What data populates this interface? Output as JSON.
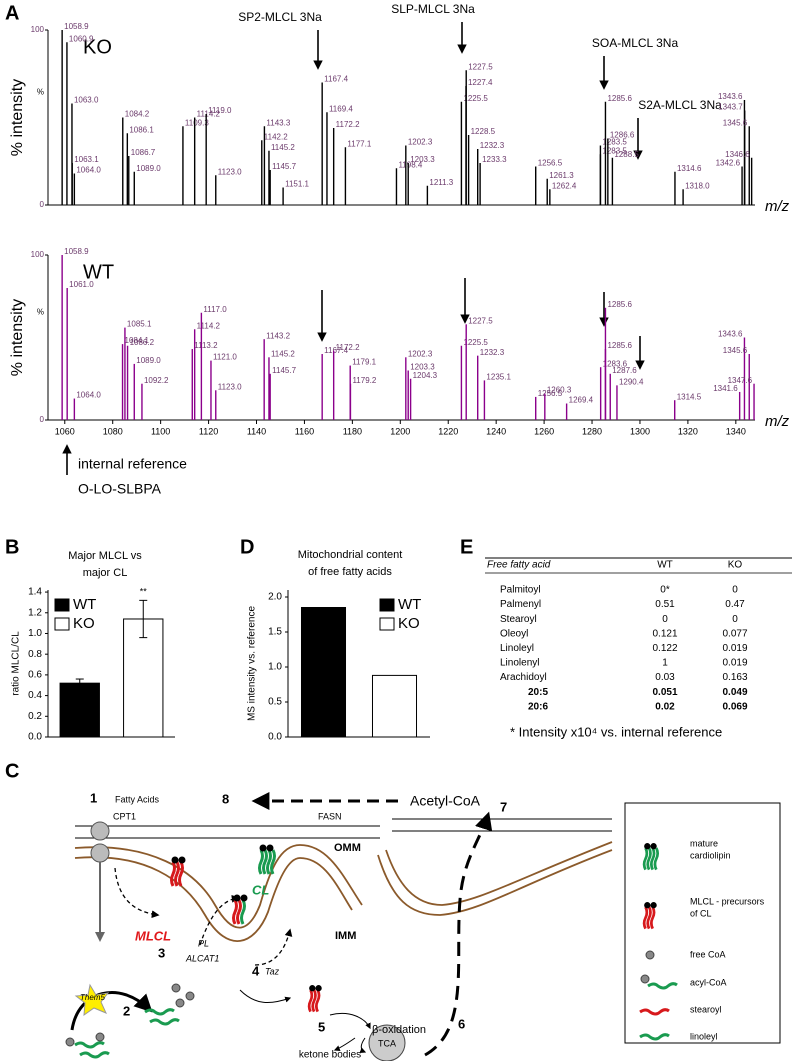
{
  "panel_letters": [
    "A",
    "B",
    "C",
    "D",
    "E"
  ],
  "chart_data": [
    {
      "type": "spectrum",
      "label": "KO",
      "y_label": "% intensity",
      "y_mid_label": "%",
      "x_label": "m/z",
      "color": "#000000",
      "label_color": "#6b3a6b",
      "xlim": [
        1053,
        1348
      ],
      "ylim": [
        0,
        100
      ],
      "yticks": [
        0,
        100
      ],
      "annotations": [
        "SP2-MLCL 3Na",
        "SLP-MLCL 3Na",
        "SOA-MLCL 3Na",
        "S2A-MLCL 3Na"
      ],
      "x": [
        1058.9,
        1060.9,
        1063.0,
        1063.1,
        1064.0,
        1084.2,
        1086.1,
        1086.7,
        1089.0,
        1109.3,
        1114.2,
        1119.0,
        1123.0,
        1142.2,
        1143.3,
        1145.2,
        1145.7,
        1151.1,
        1167.4,
        1169.4,
        1172.2,
        1177.1,
        1198.4,
        1202.3,
        1203.3,
        1211.3,
        1225.5,
        1227.4,
        1227.5,
        1228.5,
        1232.3,
        1233.3,
        1256.5,
        1261.3,
        1262.4,
        1283.5,
        1283.5,
        1285.6,
        1286.6,
        1288.5,
        1314.6,
        1318.0,
        1342.6,
        1343.6,
        1343.7,
        1345.6,
        1346.6
      ],
      "x_labels": [
        "1058.9",
        "1060.9",
        "1063.0",
        "1063.1",
        "1064.0",
        "1084.2",
        "1086.1",
        "1086.7",
        "1089.0",
        "1109.3",
        "1114.2",
        "1119.0",
        "1123.0",
        "1142.2",
        "1143.3",
        "1145.2",
        "1145.7",
        "1151.1",
        "1167.4",
        "1169.4",
        "1172.2",
        "1177.1",
        "1198.4",
        "1202.3",
        "1203.3",
        "1211.3",
        "1225.5",
        "1227.4",
        "1227.5",
        "1228.5",
        "1232.3",
        "1233.3",
        "1256.5",
        "1261.3",
        "1262.4",
        "1283.5",
        "1283.5",
        "1285.6",
        "1286.6",
        "1288.5",
        "1314.6",
        "1318.0",
        "1342.6",
        "1343.6",
        "1343.7",
        "1345.6",
        "1346.6"
      ],
      "values": [
        100,
        93,
        58,
        24,
        18,
        50,
        41,
        28,
        19,
        45,
        50,
        52,
        17,
        37,
        45,
        31,
        20,
        10,
        70,
        53,
        44,
        33,
        21,
        34,
        24,
        11,
        59,
        68,
        77,
        40,
        32,
        24,
        22,
        15,
        9,
        34,
        29,
        59,
        38,
        27,
        19,
        9,
        22,
        60,
        54,
        45,
        27
      ]
    },
    {
      "type": "spectrum",
      "label": "WT",
      "y_label": "% intensity",
      "y_mid_label": "%",
      "x_label": "m/z",
      "color": "#8b008b",
      "label_color": "#6b3a6b",
      "xlim": [
        1053,
        1348
      ],
      "ylim": [
        0,
        100
      ],
      "yticks": [
        0,
        100
      ],
      "xticks": [
        1060,
        1080,
        1100,
        1120,
        1140,
        1160,
        1180,
        1200,
        1220,
        1240,
        1260,
        1280,
        1300,
        1320,
        1340
      ],
      "reference_note": [
        "internal reference",
        "O-LO-SLBPA"
      ],
      "x": [
        1058.9,
        1061.0,
        1064.0,
        1084.1,
        1085.1,
        1086.2,
        1089.0,
        1092.2,
        1113.2,
        1114.2,
        1117.0,
        1121.0,
        1123.0,
        1143.2,
        1145.2,
        1145.7,
        1167.4,
        1172.2,
        1179.1,
        1179.2,
        1202.3,
        1203.3,
        1204.3,
        1225.5,
        1227.5,
        1232.3,
        1235.1,
        1256.5,
        1260.3,
        1269.4,
        1283.6,
        1285.6,
        1285.6,
        1287.6,
        1290.4,
        1314.5,
        1341.6,
        1343.6,
        1345.6,
        1347.6
      ],
      "x_labels": [
        "1058.9",
        "1061.0",
        "1064.0",
        "1084.1",
        "1085.1",
        "1086.2",
        "1089.0",
        "1092.2",
        "1113.2",
        "1114.2",
        "1117.0",
        "1121.0",
        "1123.0",
        "1143.2",
        "1145.2",
        "1145.7",
        "1167.4",
        "1172.2",
        "1179.1",
        "1179.2",
        "1202.3",
        "1203.3",
        "1204.3",
        "1225.5",
        "1227.5",
        "1232.3",
        "1235.1",
        "1256.5",
        "1260.3",
        "1269.4",
        "1283.6",
        "1285.6",
        "1285.6",
        "1287.6",
        "1290.4",
        "1314.5",
        "1341.6",
        "1343.6",
        "1345.6",
        "1347.6"
      ],
      "values": [
        100,
        80,
        13,
        46,
        56,
        45,
        34,
        22,
        43,
        55,
        65,
        36,
        18,
        49,
        38,
        28,
        40,
        42,
        33,
        22,
        38,
        30,
        25,
        45,
        58,
        39,
        24,
        14,
        16,
        10,
        32,
        68,
        43,
        28,
        21,
        12,
        17,
        50,
        40,
        22
      ]
    },
    {
      "type": "bar",
      "title": [
        "Major MLCL vs",
        "major CL"
      ],
      "y_label": "ratio MLCL/CL",
      "annotation": "**",
      "ylim": [
        0,
        1.42
      ],
      "yticks": [
        {
          "value": 0,
          "label": "0.0"
        },
        0.2,
        0.4,
        0.6,
        0.8,
        {
          "value": 1,
          "label": "1.0"
        },
        1.2,
        1.4
      ],
      "series": [
        {
          "name": "WT",
          "color": "#000000",
          "values": [
            0.52
          ],
          "errors": [
            0.04
          ]
        },
        {
          "name": "KO",
          "color": "#ffffff",
          "values": [
            1.14
          ],
          "errors": [
            0.18
          ]
        }
      ]
    },
    {
      "type": "bar",
      "title": [
        "Mitochondrial content",
        "of free fatty acids"
      ],
      "y_label": "MS intensity vs. reference",
      "ylim": [
        0,
        2.1
      ],
      "yticks": [
        {
          "value": 0,
          "label": "0.0"
        },
        0.5,
        {
          "value": 1,
          "label": "1.0"
        },
        1.5,
        {
          "value": 2,
          "label": "2.0"
        }
      ],
      "series": [
        {
          "name": "WT",
          "color": "#000000",
          "values": [
            1.85
          ]
        },
        {
          "name": "KO",
          "color": "#ffffff",
          "values": [
            0.88
          ]
        }
      ]
    }
  ],
  "table": {
    "header": [
      "Free fatty acid",
      "WT",
      "KO"
    ],
    "rows": [
      [
        "Palmitoyl",
        "0*",
        "0"
      ],
      [
        "Palmenyl",
        "0.51",
        "0.47"
      ],
      [
        "Stearoyl",
        "0",
        "0"
      ],
      [
        "Oleoyl",
        "0.121",
        "0.077"
      ],
      [
        "Linoleyl",
        "0.122",
        "0.019"
      ],
      [
        "Linolenyl",
        "1",
        "0.019"
      ],
      [
        "Arachidoyl",
        "0.03",
        "0.163"
      ],
      [
        "20:5",
        "0.051",
        "0.049"
      ],
      [
        "20:6",
        "0.02",
        "0.069"
      ]
    ],
    "note": "* Intensity x10⁴ vs. internal reference"
  },
  "diagram": {
    "step1": "1",
    "fatty_acids": "Fatty Acids",
    "cpt1": "CPT1",
    "step8": "8",
    "fasn": "FASN",
    "acetyl_coa": "Acetyl-CoA",
    "step7": "7",
    "omm": "OMM",
    "imm": "IMM",
    "mlcl": "MLCL",
    "cl": "CL",
    "pl": "PL",
    "alcat1": "ALCAT1",
    "step3": "3",
    "step4": "4",
    "taz": "Taz",
    "them5": "Them5",
    "step2": "2",
    "step5": "5",
    "beta_oxidation": "β-oxidation",
    "step6": "6",
    "tca": "TCA",
    "ketone_bodies": "ketone bodies",
    "legend": [
      [
        "mature",
        "cardiolipin"
      ],
      [
        "MLCL - precursors",
        "of CL"
      ],
      [
        "free CoA"
      ],
      [
        "acyl-CoA"
      ],
      [
        "stearoyl"
      ],
      [
        "linoleyl"
      ]
    ]
  }
}
